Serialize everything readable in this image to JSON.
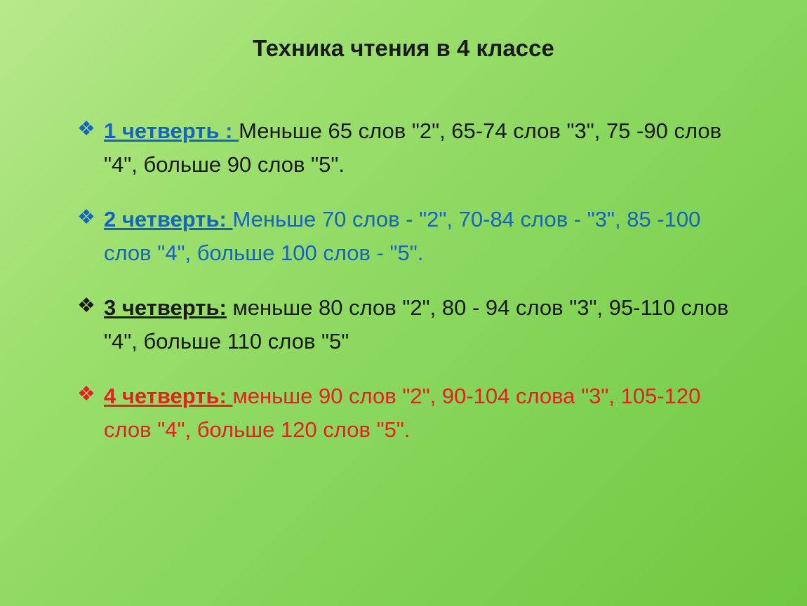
{
  "title": "Техника чтения в 4 классе",
  "quarters": [
    {
      "label": "1 четверть : ",
      "text": "Меньше 65 слов \"2\",  65-74 слов \"3\", 75 -90 слов \"4\", больше 90 слов \"5\"."
    },
    {
      "label": "2 четверть: ",
      "text": "Меньше 70 слов - \"2\", 70-84 слов - \"3\", 85 -100 слов \"4\", больше 100 слов - \"5\"."
    },
    {
      "label": "3 четверть:",
      "text": " меньше 80 слов \"2\",  80 - 94 слов \"3\", 95-110 слов \"4\", больше 110 слов \"5\""
    },
    {
      "label": "4 четверть: ",
      "text": "меньше 90 слов \"2\", 90-104 слова \"3\", 105-120 слов \"4\", больше 120 слов \"5\"."
    }
  ],
  "styling": {
    "background_gradient": [
      "#b8e88c",
      "#9fe070",
      "#8cd860",
      "#7dd050",
      "#6fc840"
    ],
    "title_color": "#1a1a1a",
    "title_fontsize": 33,
    "body_fontsize": 31,
    "bullet_char": "❖",
    "quarter_colors": {
      "q1": {
        "bullet": "#1565c0",
        "label": "#1565c0",
        "text": "#1a1a1a"
      },
      "q2": {
        "bullet": "#1565c0",
        "label": "#1565c0",
        "text": "#1565c0"
      },
      "q3": {
        "bullet": "#1a1a1a",
        "label": "#1a1a1a",
        "text": "#1a1a1a"
      },
      "q4": {
        "bullet": "#e62020",
        "label": "#e62020",
        "text": "#e62020"
      }
    }
  }
}
